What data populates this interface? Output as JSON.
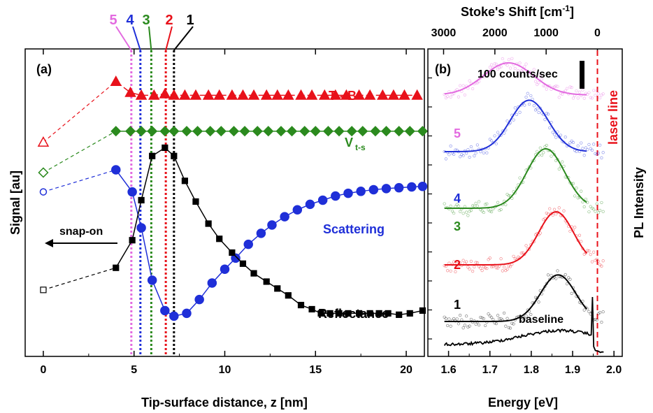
{
  "colors": {
    "red": "#e8111a",
    "green": "#2b8a1e",
    "blue": "#1f2fd8",
    "black": "#000000",
    "magenta": "#e36ae0"
  },
  "chart_data": [
    {
      "panel": "(a)",
      "type": "scatter",
      "xlabel": "Tip-surface distance, z [nm]",
      "ylabel": "Signal [au]",
      "xlim": [
        -1,
        21
      ],
      "ylim": [
        0,
        100
      ],
      "x_ticks": [
        "0",
        "5",
        "10",
        "15",
        "20"
      ],
      "annotation": "snap-on",
      "distance_markers": [
        {
          "label": "5",
          "x": 4.85,
          "color": "#e36ae0"
        },
        {
          "label": "4",
          "x": 5.35,
          "color": "#1f2fd8"
        },
        {
          "label": "3",
          "x": 5.95,
          "color": "#2b8a1e"
        },
        {
          "label": "2",
          "x": 6.75,
          "color": "#e8111a"
        },
        {
          "label": "1",
          "x": 7.2,
          "color": "#000000"
        }
      ],
      "series": [
        {
          "name": "T - B",
          "color": "#e8111a",
          "marker": "triangle",
          "open_point": [
            0,
            70
          ],
          "x": [
            4,
            4.8,
            5.4,
            6.1,
            6.7,
            7.2,
            7.8,
            8.4,
            9.1,
            9.7,
            10.4,
            11,
            11.6,
            12.3,
            12.9,
            13.5,
            14.2,
            14.8,
            15.5,
            16.1,
            16.7,
            17.4,
            18,
            18.7,
            19.3,
            19.9,
            20.6
          ],
          "y": [
            92,
            88,
            87,
            87,
            87.5,
            87,
            87,
            87,
            87,
            87,
            87,
            87,
            87,
            87,
            87,
            87,
            87,
            87,
            87,
            87,
            87,
            87,
            87,
            87,
            87,
            87,
            87
          ]
        },
        {
          "name": "V t-s",
          "color": "#2b8a1e",
          "marker": "diamond",
          "open_point": [
            0,
            59
          ],
          "x": [
            4,
            4.8,
            5.4,
            6,
            6.7,
            7.2,
            7.9,
            8.5,
            9.2,
            9.8,
            10.5,
            11.1,
            11.8,
            12.4,
            13.1,
            13.7,
            14.4,
            15,
            15.7,
            16.3,
            17,
            17.6,
            18.3,
            18.9,
            19.6,
            20.2,
            20.9
          ],
          "y": [
            74,
            74,
            74,
            74,
            74,
            74,
            74,
            74,
            74,
            74,
            74,
            74,
            74,
            74,
            74,
            74,
            74,
            74,
            74,
            74,
            74,
            74,
            74,
            74,
            74,
            74,
            74
          ]
        },
        {
          "name": "Scattering",
          "color": "#1f2fd8",
          "marker": "circle",
          "open_point": [
            0,
            52
          ],
          "x": [
            4,
            4.9,
            5.4,
            6,
            6.7,
            7.2,
            7.9,
            8.6,
            9.3,
            10,
            10.6,
            11.3,
            12,
            12.6,
            13.3,
            14,
            14.7,
            15.4,
            16.1,
            16.8,
            17.5,
            18.2,
            18.9,
            19.6,
            20.3,
            20.9
          ],
          "y": [
            60,
            52,
            39,
            20,
            9,
            7,
            8,
            13,
            19,
            24,
            28,
            33,
            37,
            40,
            43,
            45.5,
            47.5,
            49,
            50.5,
            51.5,
            52.2,
            52.8,
            53.2,
            53.5,
            53.8,
            54
          ]
        },
        {
          "name": "Reflectance",
          "color": "#000000",
          "marker": "square",
          "open_point": [
            0,
            16.5
          ],
          "x": [
            4,
            4.9,
            5.4,
            6,
            6.7,
            7.2,
            7.8,
            8.4,
            9.1,
            9.7,
            10.4,
            11,
            11.6,
            12.3,
            12.9,
            13.5,
            14.2,
            14.8,
            15.3,
            15.8,
            16.3,
            16.8,
            17.4,
            18,
            18.5,
            19,
            19.6,
            20.2,
            20.9
          ],
          "y": [
            24.5,
            34.5,
            49,
            65,
            68,
            65,
            56,
            48.5,
            40.5,
            35,
            30,
            26,
            22.5,
            19.5,
            17,
            14.5,
            11,
            9.5,
            8,
            8,
            8,
            8,
            8,
            8,
            8,
            8,
            7.5,
            8,
            9
          ]
        }
      ],
      "series_labels": [
        "T - B",
        "V",
        "t-s",
        "Scattering",
        "Reflectance"
      ]
    },
    {
      "panel": "(b)",
      "type": "scatter",
      "xlabel": "Energy [eV]",
      "ylabel": "PL Intensity",
      "top_xlabel": "Stoke's Shift [cm",
      "top_xlabel_sup": "-1",
      "top_xlabel_end": "]",
      "xlim": [
        1.55,
        2.02
      ],
      "x_ticks": [
        "1.6",
        "1.7",
        "1.8",
        "1.9",
        "2.0"
      ],
      "top_ticks": [
        {
          "label": "3000",
          "energy": 1.588
        },
        {
          "label": "2000",
          "energy": 1.712
        },
        {
          "label": "1000",
          "energy": 1.836
        },
        {
          "label": "0",
          "energy": 1.96
        }
      ],
      "scale_bar": "100 counts/sec",
      "laser_line": {
        "label": "laser line",
        "energy": 1.96
      },
      "spectra": [
        {
          "label": "5",
          "color": "#e36ae0",
          "offset": 4,
          "peak": 1.745,
          "width": 0.085,
          "amp": 1.0
        },
        {
          "label": "4",
          "color": "#1f2fd8",
          "offset": 3,
          "peak": 1.795,
          "width": 0.065,
          "amp": 1.6
        },
        {
          "label": "3",
          "color": "#2b8a1e",
          "offset": 2,
          "peak": 1.835,
          "width": 0.065,
          "amp": 1.85
        },
        {
          "label": "2",
          "color": "#e8111a",
          "offset": 1,
          "peak": 1.86,
          "width": 0.06,
          "amp": 1.65
        },
        {
          "label": "1",
          "color": "#000000",
          "offset": 0,
          "peak": 1.865,
          "width": 0.06,
          "amp": 1.45
        }
      ],
      "baseline": {
        "label": "baseline",
        "color": "#000000"
      }
    }
  ]
}
